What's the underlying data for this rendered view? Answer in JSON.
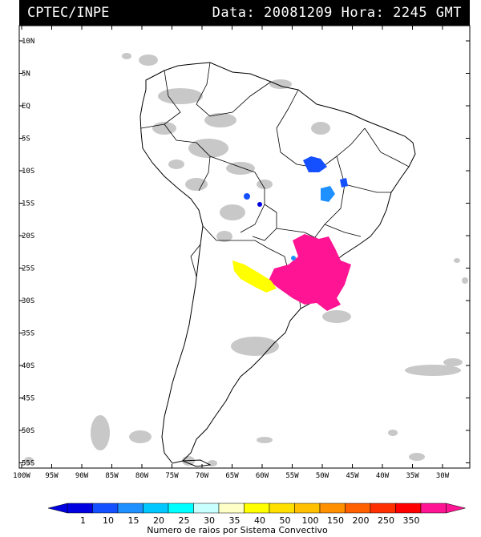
{
  "header": {
    "source": "CPTEC/INPE",
    "date_label": "Data:",
    "date_value": "20081209",
    "time_label": "Hora:",
    "time_value": "2245 GMT"
  },
  "map": {
    "lat_labels": [
      "10N",
      "5N",
      "EQ",
      "5S",
      "10S",
      "15S",
      "20S",
      "25S",
      "30S",
      "35S",
      "40S",
      "45S",
      "50S",
      "55S"
    ],
    "lon_labels": [
      "100W",
      "95W",
      "90W",
      "85W",
      "80W",
      "75W",
      "70W",
      "65W",
      "60W",
      "55W",
      "50W",
      "45W",
      "40W",
      "35W",
      "30W"
    ]
  },
  "legend": {
    "title": "Numero de raios por Sistema Convectivo",
    "values": [
      "1",
      "10",
      "15",
      "20",
      "25",
      "30",
      "35",
      "40",
      "50",
      "100",
      "150",
      "200",
      "250",
      "350"
    ],
    "colors": [
      "#0000e0",
      "#1450ff",
      "#1e90ff",
      "#00c8ff",
      "#00ffff",
      "#c8ffff",
      "#ffffc8",
      "#ffff00",
      "#ffe000",
      "#ffc000",
      "#ff9000",
      "#ff6000",
      "#ff3000",
      "#ff0000",
      "#ff1493"
    ]
  }
}
